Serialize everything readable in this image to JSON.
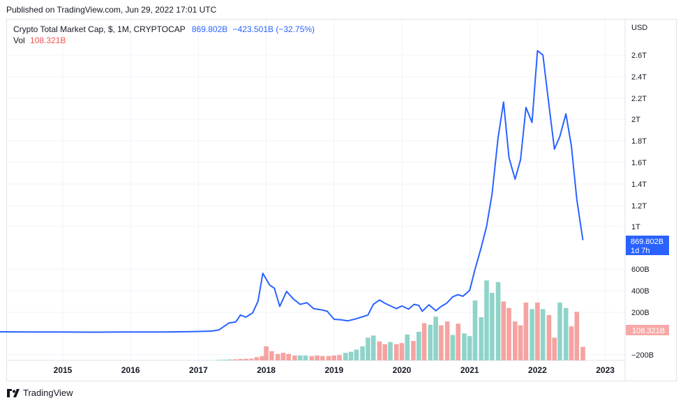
{
  "header": {
    "published_text": "Published on TradingView.com, Jun 29, 2022 17:01 UTC"
  },
  "legend": {
    "symbol_text": "Crypto Total Market Cap, $, 1M, CRYPTOCAP",
    "last_value": "869.802B",
    "change": "−423.501B (−32.75%)",
    "volume_label": "Vol",
    "volume_value": "108.321B"
  },
  "price_axis": {
    "currency": "USD",
    "ticks": [
      "2.6T",
      "2.4T",
      "2.2T",
      "2T",
      "1.8T",
      "1.6T",
      "1.4T",
      "1.2T",
      "1T",
      "600B",
      "400B",
      "200B",
      "−200B"
    ]
  },
  "price_tag": {
    "value": "869.802B",
    "countdown": "1d 7h"
  },
  "volume_tag": {
    "value": "108.321B"
  },
  "footer": {
    "brand": "TradingView"
  },
  "colors": {
    "line": "#2962ff",
    "vol_up": "#26a69a",
    "vol_down": "#ef5350",
    "grid": "#f0f3fa",
    "tag_bg": "#2962ff",
    "vol_tag_bg": "#f7a9a7"
  },
  "chart_data": {
    "type": "line",
    "title": "Crypto Total Market Cap, $, 1M, CRYPTOCAP",
    "xlabel": "",
    "ylabel": "USD",
    "x_ticks": [
      "2015",
      "2016",
      "2017",
      "2018",
      "2019",
      "2020",
      "2021",
      "2022",
      "2023"
    ],
    "ylim": [
      -0.2,
      2.73
    ],
    "y_unit": "trillion USD",
    "series": [
      {
        "values": [
          [
            2014.0,
            0.013
          ],
          [
            2014.5,
            0.012
          ],
          [
            2014.9,
            0.011
          ],
          [
            2015.5,
            0.01
          ],
          [
            2015.9,
            0.011
          ],
          [
            2016.5,
            0.012
          ],
          [
            2016.9,
            0.015
          ],
          [
            2017.1,
            0.018
          ],
          [
            2017.2,
            0.02
          ],
          [
            2017.3,
            0.03
          ],
          [
            2017.45,
            0.095
          ],
          [
            2017.55,
            0.105
          ],
          [
            2017.62,
            0.17
          ],
          [
            2017.7,
            0.15
          ],
          [
            2017.8,
            0.19
          ],
          [
            2017.88,
            0.3
          ],
          [
            2017.95,
            0.56
          ],
          [
            2018.05,
            0.45
          ],
          [
            2018.12,
            0.42
          ],
          [
            2018.2,
            0.25
          ],
          [
            2018.3,
            0.39
          ],
          [
            2018.4,
            0.32
          ],
          [
            2018.5,
            0.27
          ],
          [
            2018.6,
            0.285
          ],
          [
            2018.7,
            0.23
          ],
          [
            2018.8,
            0.22
          ],
          [
            2018.9,
            0.205
          ],
          [
            2019.0,
            0.13
          ],
          [
            2019.1,
            0.125
          ],
          [
            2019.2,
            0.115
          ],
          [
            2019.3,
            0.13
          ],
          [
            2019.4,
            0.15
          ],
          [
            2019.5,
            0.17
          ],
          [
            2019.58,
            0.27
          ],
          [
            2019.67,
            0.31
          ],
          [
            2019.75,
            0.28
          ],
          [
            2019.85,
            0.25
          ],
          [
            2019.92,
            0.23
          ],
          [
            2020.0,
            0.255
          ],
          [
            2020.1,
            0.225
          ],
          [
            2020.18,
            0.27
          ],
          [
            2020.25,
            0.26
          ],
          [
            2020.3,
            0.205
          ],
          [
            2020.4,
            0.265
          ],
          [
            2020.5,
            0.21
          ],
          [
            2020.58,
            0.25
          ],
          [
            2020.66,
            0.28
          ],
          [
            2020.75,
            0.34
          ],
          [
            2020.83,
            0.36
          ],
          [
            2020.9,
            0.345
          ],
          [
            2021.0,
            0.4
          ],
          [
            2021.08,
            0.6
          ],
          [
            2021.17,
            0.8
          ],
          [
            2021.25,
            1.0
          ],
          [
            2021.33,
            1.3
          ],
          [
            2021.42,
            1.83
          ],
          [
            2021.5,
            2.16
          ],
          [
            2021.58,
            1.64
          ],
          [
            2021.67,
            1.44
          ],
          [
            2021.75,
            1.62
          ],
          [
            2021.83,
            2.11
          ],
          [
            2021.92,
            1.97
          ],
          [
            2022.0,
            2.64
          ],
          [
            2022.08,
            2.6
          ],
          [
            2022.17,
            2.13
          ],
          [
            2022.25,
            1.72
          ],
          [
            2022.33,
            1.84
          ],
          [
            2022.42,
            2.05
          ],
          [
            2022.5,
            1.75
          ],
          [
            2022.58,
            1.25
          ],
          [
            2022.67,
            0.87
          ]
        ]
      }
    ],
    "volume": {
      "name": "Vol",
      "bars": [
        [
          2017.3,
          0.005,
          "up"
        ],
        [
          2017.38,
          0.007,
          "up"
        ],
        [
          2017.46,
          0.009,
          "up"
        ],
        [
          2017.54,
          0.01,
          "down"
        ],
        [
          2017.62,
          0.013,
          "down"
        ],
        [
          2017.7,
          0.015,
          "down"
        ],
        [
          2017.78,
          0.016,
          "down"
        ],
        [
          2017.86,
          0.03,
          "down"
        ],
        [
          2017.94,
          0.04,
          "down"
        ],
        [
          2018.0,
          0.13,
          "down"
        ],
        [
          2018.08,
          0.085,
          "down"
        ],
        [
          2018.17,
          0.06,
          "down"
        ],
        [
          2018.25,
          0.07,
          "down"
        ],
        [
          2018.33,
          0.06,
          "down"
        ],
        [
          2018.42,
          0.045,
          "down"
        ],
        [
          2018.5,
          0.045,
          "up"
        ],
        [
          2018.58,
          0.045,
          "up"
        ],
        [
          2018.67,
          0.04,
          "down"
        ],
        [
          2018.75,
          0.045,
          "down"
        ],
        [
          2018.83,
          0.04,
          "down"
        ],
        [
          2018.92,
          0.04,
          "down"
        ],
        [
          2019.0,
          0.045,
          "down"
        ],
        [
          2019.08,
          0.05,
          "down"
        ],
        [
          2019.17,
          0.07,
          "up"
        ],
        [
          2019.25,
          0.08,
          "up"
        ],
        [
          2019.33,
          0.1,
          "up"
        ],
        [
          2019.42,
          0.13,
          "up"
        ],
        [
          2019.5,
          0.21,
          "up"
        ],
        [
          2019.58,
          0.23,
          "up"
        ],
        [
          2019.67,
          0.175,
          "down"
        ],
        [
          2019.75,
          0.15,
          "down"
        ],
        [
          2019.83,
          0.17,
          "up"
        ],
        [
          2019.92,
          0.15,
          "down"
        ],
        [
          2020.0,
          0.16,
          "down"
        ],
        [
          2020.08,
          0.24,
          "up"
        ],
        [
          2020.17,
          0.18,
          "down"
        ],
        [
          2020.25,
          0.265,
          "up"
        ],
        [
          2020.33,
          0.345,
          "down"
        ],
        [
          2020.42,
          0.33,
          "up"
        ],
        [
          2020.5,
          0.405,
          "up"
        ],
        [
          2020.58,
          0.325,
          "down"
        ],
        [
          2020.67,
          0.36,
          "down"
        ],
        [
          2020.75,
          0.235,
          "up"
        ],
        [
          2020.83,
          0.34,
          "down"
        ],
        [
          2020.92,
          0.25,
          "up"
        ],
        [
          2021.0,
          0.225,
          "up"
        ],
        [
          2021.08,
          0.555,
          "up"
        ],
        [
          2021.17,
          0.4,
          "up"
        ],
        [
          2021.25,
          0.74,
          "up"
        ],
        [
          2021.33,
          0.625,
          "up"
        ],
        [
          2021.42,
          0.725,
          "up"
        ],
        [
          2021.5,
          0.545,
          "down"
        ],
        [
          2021.58,
          0.485,
          "down"
        ],
        [
          2021.67,
          0.36,
          "down"
        ],
        [
          2021.75,
          0.325,
          "down"
        ],
        [
          2021.83,
          0.535,
          "down"
        ],
        [
          2021.92,
          0.475,
          "up"
        ],
        [
          2022.0,
          0.535,
          "down"
        ],
        [
          2022.08,
          0.475,
          "up"
        ],
        [
          2022.17,
          0.42,
          "down"
        ],
        [
          2022.25,
          0.21,
          "down"
        ],
        [
          2022.33,
          0.535,
          "up"
        ],
        [
          2022.42,
          0.485,
          "up"
        ],
        [
          2022.5,
          0.315,
          "down"
        ],
        [
          2022.58,
          0.45,
          "down"
        ],
        [
          2022.67,
          0.125,
          "down"
        ]
      ]
    },
    "grid": true,
    "legend_position": "top-left"
  }
}
